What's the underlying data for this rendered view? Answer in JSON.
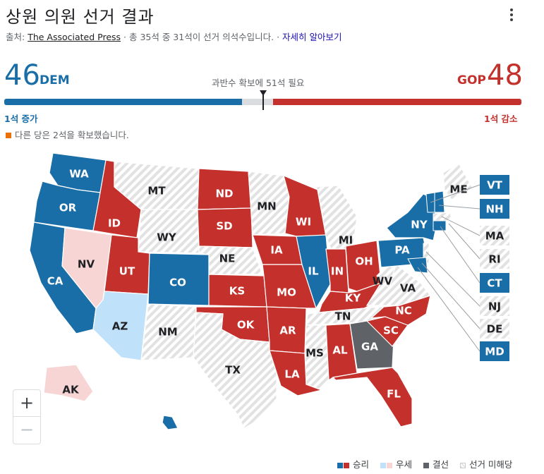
{
  "header": {
    "title": "상원 의원 선거 결과",
    "source_prefix": "출처: ",
    "source_name": "The Associated Press",
    "source_suffix": " · 총 35석 중 31석이 선거 의석수입니다. · ",
    "more_info": "자세히 알아보기",
    "menu_icon": "more-vert-icon"
  },
  "tally": {
    "dem_seats": "46",
    "dem_label": "DEM",
    "gop_seats": "48",
    "gop_label": "GOP",
    "majority_text": "과반수 확보에 51석 필요",
    "dem_change": "1석 증가",
    "gop_change": "1석 감소",
    "other_text": "다른 당은 2석을 확보했습니다.",
    "total_seats": 100,
    "majority_seats": 51
  },
  "colors": {
    "dem": "#1a6ea8",
    "gop": "#c4302b",
    "dem_lean": "#bfe1fa",
    "gop_lean": "#f7d5d5",
    "tossup": "#5f6368",
    "no_race": "#e6e6e6",
    "other_party": "#e8710a"
  },
  "map": {
    "states": [
      {
        "abbr": "WA",
        "status": "dem"
      },
      {
        "abbr": "OR",
        "status": "dem"
      },
      {
        "abbr": "CA",
        "status": "dem"
      },
      {
        "abbr": "NV",
        "status": "gop_lean"
      },
      {
        "abbr": "ID",
        "status": "gop"
      },
      {
        "abbr": "MT",
        "status": "none"
      },
      {
        "abbr": "WY",
        "status": "none"
      },
      {
        "abbr": "UT",
        "status": "gop"
      },
      {
        "abbr": "AZ",
        "status": "dem_lean"
      },
      {
        "abbr": "CO",
        "status": "dem"
      },
      {
        "abbr": "NM",
        "status": "none"
      },
      {
        "abbr": "ND",
        "status": "gop"
      },
      {
        "abbr": "SD",
        "status": "gop"
      },
      {
        "abbr": "NE",
        "status": "none"
      },
      {
        "abbr": "KS",
        "status": "gop"
      },
      {
        "abbr": "OK",
        "status": "gop"
      },
      {
        "abbr": "TX",
        "status": "none"
      },
      {
        "abbr": "MN",
        "status": "none"
      },
      {
        "abbr": "IA",
        "status": "gop"
      },
      {
        "abbr": "MO",
        "status": "gop"
      },
      {
        "abbr": "AR",
        "status": "gop"
      },
      {
        "abbr": "LA",
        "status": "gop"
      },
      {
        "abbr": "WI",
        "status": "gop"
      },
      {
        "abbr": "IL",
        "status": "dem"
      },
      {
        "abbr": "MI",
        "status": "none"
      },
      {
        "abbr": "IN",
        "status": "gop"
      },
      {
        "abbr": "OH",
        "status": "gop"
      },
      {
        "abbr": "KY",
        "status": "gop"
      },
      {
        "abbr": "TN",
        "status": "none"
      },
      {
        "abbr": "MS",
        "status": "none"
      },
      {
        "abbr": "AL",
        "status": "gop"
      },
      {
        "abbr": "GA",
        "status": "tossup"
      },
      {
        "abbr": "FL",
        "status": "gop"
      },
      {
        "abbr": "SC",
        "status": "gop"
      },
      {
        "abbr": "NC",
        "status": "gop"
      },
      {
        "abbr": "VA",
        "status": "none"
      },
      {
        "abbr": "WV",
        "status": "none"
      },
      {
        "abbr": "PA",
        "status": "dem"
      },
      {
        "abbr": "NY",
        "status": "dem"
      },
      {
        "abbr": "ME",
        "status": "none"
      },
      {
        "abbr": "AK",
        "status": "gop_lean"
      },
      {
        "abbr": "HI",
        "status": "dem"
      }
    ],
    "callouts": [
      {
        "abbr": "VT",
        "status": "dem"
      },
      {
        "abbr": "NH",
        "status": "dem"
      },
      {
        "abbr": "MA",
        "status": "none"
      },
      {
        "abbr": "RI",
        "status": "none"
      },
      {
        "abbr": "CT",
        "status": "dem"
      },
      {
        "abbr": "NJ",
        "status": "none"
      },
      {
        "abbr": "DE",
        "status": "none"
      },
      {
        "abbr": "MD",
        "status": "dem"
      }
    ]
  },
  "zoom": {
    "in": "+",
    "out": "−"
  },
  "legend": {
    "won": "승리",
    "leading": "우세",
    "runoff": "결선",
    "no_race": "선거 미해당"
  }
}
